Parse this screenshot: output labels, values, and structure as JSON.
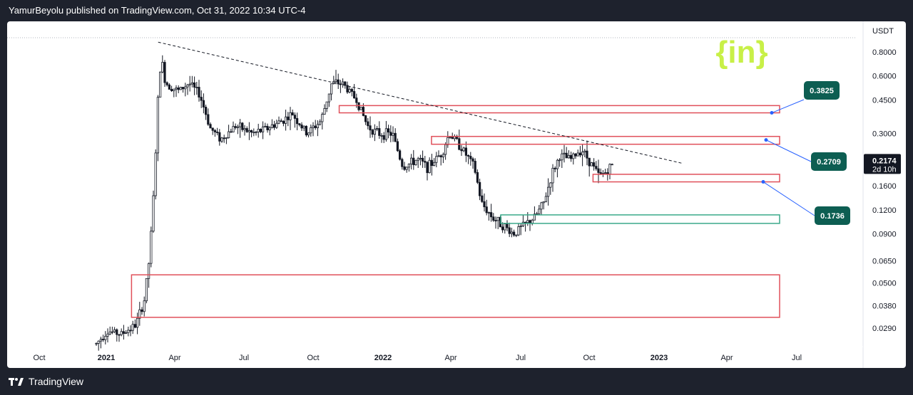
{
  "header": {
    "publish_line": "YamurBeyolu published on TradingView.com, Oct 31, 2022 10:34 UTC-4"
  },
  "footer": {
    "brand": "TradingView"
  },
  "watermark": {
    "text": "{in}",
    "color": "#c8f047"
  },
  "colors": {
    "resistance": "#e0505a",
    "support": "#3aa98a",
    "callout": "#0d5e52",
    "candle": "#131722",
    "price_label": "#131722"
  },
  "chart_data": {
    "type": "candlestick",
    "symbol_currency": "USDT",
    "scale": "log",
    "y_ticks": [
      "0.8000",
      "0.6000",
      "0.4500",
      "0.3000",
      "0.2174",
      "0.1600",
      "0.1200",
      "0.0900",
      "0.0650",
      "0.0500",
      "0.0380",
      "0.0290"
    ],
    "x_ticks": [
      "Oct",
      "2021",
      "Apr",
      "Jul",
      "Oct",
      "2022",
      "Apr",
      "Jul",
      "Oct",
      "2023",
      "Apr",
      "Jul"
    ],
    "x_ticks_bold": [
      "2021",
      "2022",
      "2023"
    ],
    "last_price": "0.2174",
    "countdown": "2d 10h",
    "zones": [
      {
        "name": "resistance-zone-1",
        "type": "resistance",
        "top": 0.42,
        "bottom": 0.385,
        "start": "Nov 2021"
      },
      {
        "name": "resistance-zone-2",
        "type": "resistance",
        "top": 0.29,
        "bottom": 0.264,
        "start": "Mar 2022"
      },
      {
        "name": "resistance-zone-3",
        "type": "resistance",
        "top": 0.184,
        "bottom": 0.168,
        "start": "Oct 2022"
      },
      {
        "name": "support-zone",
        "type": "support",
        "top": 0.113,
        "bottom": 0.102,
        "start": "Jun 2022"
      },
      {
        "name": "demand-zone",
        "type": "resistance",
        "top": 0.055,
        "bottom": 0.033,
        "start": "Feb 2021"
      }
    ],
    "callouts": [
      "0.3825",
      "0.2709",
      "0.1736"
    ],
    "trendline": {
      "start": [
        "Mar 2021",
        0.9
      ],
      "end": [
        "Jan 2023",
        0.21
      ]
    }
  }
}
